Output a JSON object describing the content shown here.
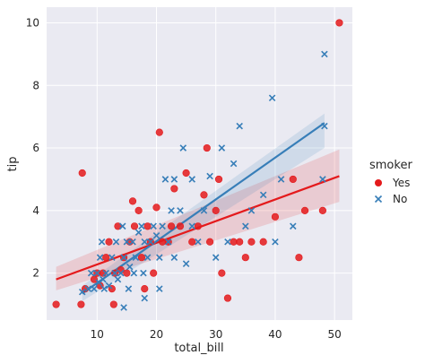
{
  "chart_data": {
    "type": "scatter",
    "xlabel": "total_bill",
    "ylabel": "tip",
    "xlim": [
      1.5,
      53
    ],
    "ylim": [
      0.5,
      10.5
    ],
    "xticks": [
      10,
      20,
      30,
      40,
      50
    ],
    "yticks": [
      2,
      4,
      6,
      8,
      10
    ],
    "grid": true,
    "background": "#eaeaf2",
    "legend": {
      "title": "smoker",
      "placement": "right"
    },
    "series": [
      {
        "name": "Yes",
        "color": "#e41a1c",
        "marker": "circle",
        "points": [
          [
            3.1,
            1.0
          ],
          [
            7.3,
            1.0
          ],
          [
            7.5,
            5.2
          ],
          [
            8.0,
            1.5
          ],
          [
            9.5,
            1.8
          ],
          [
            10.0,
            2.0
          ],
          [
            10.5,
            1.6
          ],
          [
            11.0,
            2.0
          ],
          [
            11.5,
            2.5
          ],
          [
            12.0,
            3.0
          ],
          [
            12.5,
            1.5
          ],
          [
            12.8,
            1.0
          ],
          [
            13.0,
            2.0
          ],
          [
            13.5,
            3.5
          ],
          [
            14.0,
            2.1
          ],
          [
            14.5,
            2.5
          ],
          [
            15.0,
            2.0
          ],
          [
            15.5,
            3.0
          ],
          [
            16.0,
            4.3
          ],
          [
            16.3,
            3.5
          ],
          [
            17.0,
            4.0
          ],
          [
            17.5,
            2.5
          ],
          [
            18.0,
            1.5
          ],
          [
            18.5,
            3.5
          ],
          [
            19.0,
            3.0
          ],
          [
            19.5,
            2.0
          ],
          [
            20.0,
            4.1
          ],
          [
            20.5,
            6.5
          ],
          [
            21.0,
            3.0
          ],
          [
            22.0,
            3.0
          ],
          [
            22.5,
            3.5
          ],
          [
            23.0,
            4.7
          ],
          [
            24.0,
            3.5
          ],
          [
            25.0,
            5.2
          ],
          [
            26.0,
            3.0
          ],
          [
            27.0,
            3.5
          ],
          [
            28.0,
            4.5
          ],
          [
            28.5,
            6.0
          ],
          [
            29.0,
            3.0
          ],
          [
            30.0,
            4.0
          ],
          [
            30.5,
            5.0
          ],
          [
            31.0,
            2.0
          ],
          [
            32.0,
            1.2
          ],
          [
            33.0,
            3.0
          ],
          [
            34.0,
            3.0
          ],
          [
            35.0,
            2.5
          ],
          [
            36.0,
            3.0
          ],
          [
            38.0,
            3.0
          ],
          [
            40.0,
            3.8
          ],
          [
            43.0,
            5.0
          ],
          [
            44.0,
            2.5
          ],
          [
            45.0,
            4.0
          ],
          [
            48.0,
            4.0
          ],
          [
            50.8,
            10.0
          ]
        ],
        "fit": {
          "x": [
            3.1,
            50.8
          ],
          "y": [
            1.8,
            5.1
          ]
        },
        "ci": {
          "lower": [
            1.45,
            4.28
          ],
          "upper": [
            2.2,
            5.95
          ]
        }
      },
      {
        "name": "No",
        "color": "#377eb8",
        "marker": "x",
        "points": [
          [
            7.5,
            1.4
          ],
          [
            8.5,
            1.5
          ],
          [
            9.0,
            2.0
          ],
          [
            9.5,
            1.5
          ],
          [
            10.0,
            2.0
          ],
          [
            10.3,
            1.7
          ],
          [
            10.5,
            2.5
          ],
          [
            10.8,
            3.0
          ],
          [
            11.0,
            1.8
          ],
          [
            11.2,
            1.5
          ],
          [
            11.5,
            2.0
          ],
          [
            12.0,
            1.6
          ],
          [
            12.5,
            2.5
          ],
          [
            13.0,
            2.0
          ],
          [
            13.2,
            3.0
          ],
          [
            13.5,
            1.8
          ],
          [
            14.0,
            2.0
          ],
          [
            14.3,
            3.5
          ],
          [
            14.5,
            2.5
          ],
          [
            15.0,
            3.0
          ],
          [
            15.3,
            1.5
          ],
          [
            15.5,
            2.2
          ],
          [
            16.0,
            3.0
          ],
          [
            16.2,
            2.0
          ],
          [
            16.5,
            2.5
          ],
          [
            17.0,
            3.3
          ],
          [
            17.5,
            3.5
          ],
          [
            17.8,
            2.0
          ],
          [
            18.0,
            3.0
          ],
          [
            18.5,
            2.5
          ],
          [
            19.0,
            3.0
          ],
          [
            19.5,
            3.5
          ],
          [
            20.0,
            3.2
          ],
          [
            20.5,
            2.5
          ],
          [
            21.0,
            3.5
          ],
          [
            21.5,
            5.0
          ],
          [
            22.0,
            3.0
          ],
          [
            22.5,
            4.0
          ],
          [
            23.0,
            5.0
          ],
          [
            24.0,
            4.0
          ],
          [
            24.5,
            6.0
          ],
          [
            25.0,
            2.3
          ],
          [
            26.0,
            5.0
          ],
          [
            27.0,
            3.0
          ],
          [
            28.0,
            4.0
          ],
          [
            29.0,
            5.1
          ],
          [
            30.0,
            2.5
          ],
          [
            31.0,
            6.0
          ],
          [
            32.0,
            3.0
          ],
          [
            33.0,
            5.5
          ],
          [
            34.0,
            6.7
          ],
          [
            35.0,
            3.5
          ],
          [
            36.0,
            4.0
          ],
          [
            38.0,
            4.5
          ],
          [
            39.5,
            7.6
          ],
          [
            40.0,
            3.0
          ],
          [
            41.0,
            5.0
          ],
          [
            43.0,
            3.5
          ],
          [
            48.3,
            9.0
          ],
          [
            48.3,
            6.7
          ],
          [
            48.0,
            5.0
          ],
          [
            14.5,
            0.9
          ],
          [
            20.5,
            1.5
          ],
          [
            18.0,
            1.2
          ],
          [
            23.0,
            2.5
          ],
          [
            26.0,
            3.5
          ]
        ],
        "fit": {
          "x": [
            7.5,
            48.3
          ],
          "y": [
            1.35,
            6.8
          ]
        },
        "ci": {
          "lower": [
            1.1,
            6.0
          ],
          "upper": [
            1.6,
            7.1
          ]
        }
      }
    ]
  }
}
